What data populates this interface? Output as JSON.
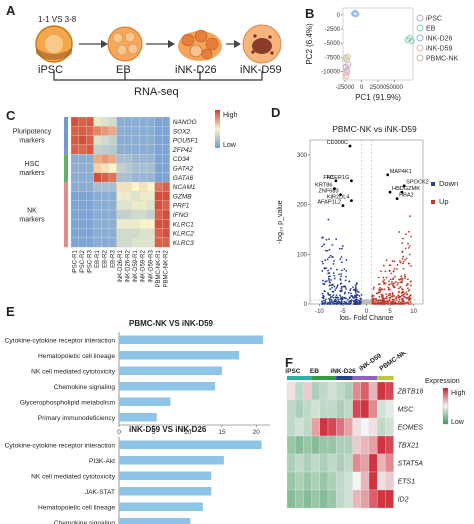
{
  "panels": {
    "a": "A",
    "b": "B",
    "c": "C",
    "d": "D",
    "e": "E",
    "f": "F"
  },
  "panel_a": {
    "protocol": "1-1 VS 3-8",
    "stages": [
      "iPSC",
      "EB",
      "iNK-D26",
      "iNK-D59"
    ],
    "bracket_label": "RNA-seq"
  },
  "panel_b": {
    "chart_data": {
      "type": "scatter",
      "xlabel": "PC1 (91.9%)",
      "ylabel": "PC2 (6.4%)",
      "xticks": [
        -25000,
        0,
        25000,
        50000
      ],
      "yticks": [
        0,
        -2500,
        -5000,
        -7500,
        -10000
      ],
      "xlim": [
        -28000,
        78000
      ],
      "ylim": [
        -11500,
        1200
      ],
      "series": [
        {
          "name": "iPSC",
          "color": "#c9a3d6",
          "points": [
            [
              -24000,
              -9200
            ],
            [
              -22500,
              -9800
            ],
            [
              -20500,
              -8800
            ]
          ]
        },
        {
          "name": "EB",
          "color": "#7fcfb8",
          "points": [
            [
              70000,
              -4400
            ],
            [
              73000,
              -4100
            ],
            [
              76000,
              -4600
            ]
          ]
        },
        {
          "name": "iNK-D26",
          "color": "#8ab8e8",
          "points": [
            [
              -11000,
              200
            ],
            [
              -9500,
              300
            ],
            [
              -8000,
              100
            ]
          ]
        },
        {
          "name": "iNK-D59",
          "color": "#e5b7a8",
          "points": [
            [
              -24500,
              -10300
            ],
            [
              -23000,
              -10800
            ],
            [
              -21500,
              -10100
            ]
          ]
        },
        {
          "name": "PBMC-NK",
          "color": "#c8c49a",
          "points": [
            [
              -24000,
              -7600
            ],
            [
              -22500,
              -7900
            ],
            [
              -21000,
              -7400
            ]
          ]
        }
      ]
    }
  },
  "panel_c": {
    "chart_data": {
      "type": "heatmap",
      "legend_high": "High",
      "legend_low": "Low",
      "groups": [
        "Pluripotency markers",
        "HSC markers",
        "NK markers"
      ],
      "group_colors": [
        "#6f9bd1",
        "#5fb06a",
        "#e28b8b"
      ],
      "group_sizes": [
        4,
        3,
        7
      ],
      "genes": [
        "NANOG",
        "SOX2",
        "POU5F1",
        "ZFP42",
        "CD34",
        "GATA2",
        "GATA6",
        "NCAM1",
        "GZMB",
        "PRF1",
        "IFNG",
        "KLRC1",
        "KLRC2",
        "KLRC3"
      ],
      "samples": [
        "iPSC-R1",
        "iPSC-R2",
        "iPSC-R3",
        "EB-R1",
        "EB-R2",
        "EB-R3",
        "iNK-D26-R1",
        "iNK-D26-R2",
        "iNK-D59-R1",
        "iNK-D59-R2",
        "iNK-D59-R3",
        "PBMC-NK-R1",
        "PBMC-NK-R2"
      ],
      "values": [
        [
          0.95,
          0.9,
          0.92,
          0.45,
          0.4,
          0.35,
          0.1,
          0.1,
          0.1,
          0.1,
          0.1,
          0.05,
          0.05
        ],
        [
          0.9,
          0.92,
          0.88,
          0.8,
          0.75,
          0.7,
          0.1,
          0.1,
          0.1,
          0.1,
          0.1,
          0.05,
          0.05
        ],
        [
          0.92,
          0.95,
          0.9,
          0.4,
          0.35,
          0.3,
          0.1,
          0.1,
          0.1,
          0.1,
          0.1,
          0.05,
          0.05
        ],
        [
          0.9,
          0.88,
          0.92,
          0.3,
          0.28,
          0.25,
          0.1,
          0.1,
          0.1,
          0.1,
          0.1,
          0.05,
          0.05
        ],
        [
          0.1,
          0.1,
          0.1,
          0.7,
          0.75,
          0.7,
          0.2,
          0.2,
          0.15,
          0.15,
          0.15,
          0.05,
          0.05
        ],
        [
          0.1,
          0.1,
          0.1,
          0.6,
          0.55,
          0.5,
          0.3,
          0.25,
          0.2,
          0.2,
          0.2,
          0.05,
          0.05
        ],
        [
          0.1,
          0.1,
          0.1,
          0.95,
          0.9,
          0.85,
          0.2,
          0.2,
          0.15,
          0.15,
          0.15,
          0.05,
          0.05
        ],
        [
          0.1,
          0.1,
          0.1,
          0.2,
          0.2,
          0.2,
          0.55,
          0.55,
          0.5,
          0.55,
          0.5,
          0.85,
          0.9
        ],
        [
          0.05,
          0.05,
          0.05,
          0.1,
          0.1,
          0.1,
          0.45,
          0.45,
          0.4,
          0.45,
          0.45,
          0.95,
          0.95
        ],
        [
          0.05,
          0.05,
          0.05,
          0.1,
          0.1,
          0.1,
          0.4,
          0.4,
          0.45,
          0.45,
          0.4,
          0.95,
          0.9
        ],
        [
          0.05,
          0.05,
          0.05,
          0.1,
          0.1,
          0.1,
          0.3,
          0.3,
          0.35,
          0.35,
          0.3,
          0.9,
          0.95
        ],
        [
          0.05,
          0.05,
          0.05,
          0.1,
          0.1,
          0.1,
          0.45,
          0.45,
          0.45,
          0.5,
          0.5,
          0.95,
          0.95
        ],
        [
          0.05,
          0.05,
          0.05,
          0.1,
          0.1,
          0.1,
          0.35,
          0.35,
          0.35,
          0.4,
          0.4,
          0.9,
          0.95
        ],
        [
          0.05,
          0.05,
          0.05,
          0.1,
          0.1,
          0.1,
          0.35,
          0.35,
          0.4,
          0.4,
          0.4,
          0.9,
          0.9
        ]
      ]
    }
  },
  "panel_d": {
    "chart_data": {
      "type": "scatter",
      "title": "PBMC-NK vs iNK-D59",
      "xlabel": "log₂ Fold Change",
      "ylabel": "-log₁₀ p_value",
      "xticks": [
        -10,
        -5,
        0,
        5,
        10
      ],
      "yticks": [
        0,
        100,
        200,
        300
      ],
      "xlim": [
        -12,
        12
      ],
      "ylim": [
        0,
        330
      ],
      "legend": [
        {
          "name": "Down",
          "color": "#2a3f8f"
        },
        {
          "name": "Up",
          "color": "#c0392b"
        }
      ],
      "labeled_genes": [
        {
          "gene": "CD300C",
          "x": -3.5,
          "y": 318
        },
        {
          "gene": "FN1",
          "x": -6.5,
          "y": 248
        },
        {
          "gene": "FCER1G",
          "x": -3.2,
          "y": 248
        },
        {
          "gene": "KRT86",
          "x": -6.8,
          "y": 232
        },
        {
          "gene": "ZNF683",
          "x": -5.5,
          "y": 220
        },
        {
          "gene": "KIR2DL4",
          "x": -3.2,
          "y": 208
        },
        {
          "gene": "AFAP1L2",
          "x": -5.0,
          "y": 198
        },
        {
          "gene": "MAP4K1",
          "x": 4.5,
          "y": 260
        },
        {
          "gene": "SPOCK2",
          "x": 8.0,
          "y": 238
        },
        {
          "gene": "HBD",
          "x": 5.0,
          "y": 225
        },
        {
          "gene": "GZMK",
          "x": 7.5,
          "y": 225
        },
        {
          "gene": "HBA2",
          "x": 6.5,
          "y": 212
        }
      ]
    }
  },
  "panel_e": {
    "chart_data": [
      {
        "type": "bar",
        "title": "PBMC-NK VS iNK-D59",
        "categories": [
          "Cytokine-cytokine receptor interaction",
          "Hematopoietic cell lineage",
          "NK cell mediated cytotoxicity",
          "Chemokine signaling",
          "Glycerophospholipid metabolism",
          "Primary immunodeficiency"
        ],
        "values": [
          21,
          17.5,
          15,
          14,
          7.5,
          5.5
        ],
        "xticks": [
          0,
          5,
          10,
          15,
          20
        ],
        "xlim": [
          0,
          22
        ],
        "color": "#8ec5e6"
      },
      {
        "type": "bar",
        "title": "iNK-D59 VS iNK-D26",
        "categories": [
          "Cytokine-cytokine receptor interaction",
          "PI3K-Akt",
          "NK cell mediated cytotoxicity",
          "JAK-STAT",
          "Hematopoietic cell lineage",
          "Chemokine signaling"
        ],
        "values": [
          34,
          25,
          22,
          22,
          20,
          17
        ],
        "xticks": [
          0,
          10,
          20,
          30
        ],
        "xlim": [
          0,
          36
        ],
        "color": "#8ec5e6"
      }
    ]
  },
  "panel_f": {
    "chart_data": {
      "type": "heatmap",
      "groups": [
        "iPSC",
        "EB",
        "iNK-D26",
        "iNK-D59",
        "PBMC-NK"
      ],
      "group_colors": [
        "#2bb0a5",
        "#2e9e3e",
        "#2a3f8f",
        "#8b63c9",
        "#b6c93a"
      ],
      "group_sizes": [
        3,
        3,
        2,
        3,
        2
      ],
      "legend_title": "Expression",
      "legend_high": "High",
      "legend_low": "Low",
      "genes": [
        "ZBTB16",
        "MSC",
        "EOMES",
        "TBX21",
        "STAT5A",
        "ETS1",
        "ID2"
      ],
      "values": [
        [
          0.1,
          -0.3,
          0.2,
          -0.4,
          -0.3,
          -0.2,
          -0.3,
          -0.4,
          0.5,
          0.7,
          0.3,
          0.9,
          0.8
        ],
        [
          -0.3,
          -0.4,
          -0.3,
          -0.2,
          -0.3,
          -0.3,
          -0.4,
          -0.3,
          0.8,
          0.9,
          0.5,
          -0.2,
          -0.1
        ],
        [
          -0.3,
          -0.2,
          -0.3,
          0.4,
          0.9,
          0.8,
          0.6,
          0.4,
          0.1,
          0.0,
          0.1,
          -0.3,
          -0.2
        ],
        [
          -0.5,
          -0.6,
          -0.5,
          -0.6,
          -0.5,
          -0.5,
          -0.4,
          -0.4,
          0.2,
          0.3,
          0.4,
          0.9,
          0.8
        ],
        [
          -0.4,
          -0.3,
          -0.4,
          -0.3,
          -0.4,
          -0.3,
          -0.4,
          -0.3,
          0.5,
          0.4,
          0.9,
          0.3,
          0.5
        ],
        [
          -0.5,
          -0.4,
          -0.5,
          -0.4,
          -0.5,
          -0.4,
          -0.3,
          -0.2,
          0.0,
          0.3,
          0.9,
          0.1,
          0.2
        ],
        [
          -0.6,
          -0.5,
          -0.6,
          -0.5,
          -0.6,
          -0.5,
          -0.3,
          -0.2,
          0.3,
          0.4,
          0.7,
          0.9,
          0.9
        ]
      ]
    }
  }
}
